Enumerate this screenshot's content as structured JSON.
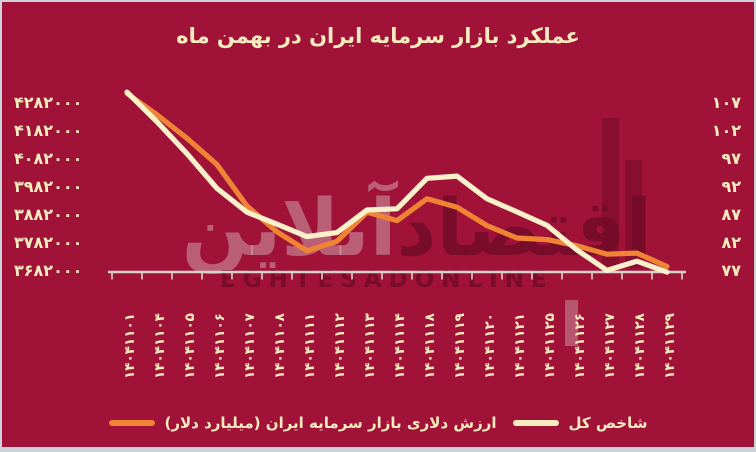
{
  "title": "عملکرد بازار سرمایه ایران در بهمن ماه",
  "watermark": {
    "brand_fa_dark": "اقتصاد",
    "brand_fa_light": "آنلاین",
    "brand_en": "EGHTESADONLINE"
  },
  "axes": {
    "left_tick_labels": [
      "۴۲۸۲۰۰۰",
      "۴۱۸۲۰۰۰",
      "۴۰۸۲۰۰۰",
      "۳۹۸۲۰۰۰",
      "۳۸۸۲۰۰۰",
      "۳۷۸۲۰۰۰",
      "۳۶۸۲۰۰۰"
    ],
    "right_tick_labels": [
      "۱۰۷",
      "۱۰۲",
      "۹۷",
      "۹۲",
      "۸۷",
      "۸۲",
      "۷۷"
    ],
    "x_tick_labels": [
      "۱۴۰۴۱۱۰۱",
      "۱۴۰۴۱۱۰۴",
      "۱۴۰۴۱۱۰۵",
      "۱۴۰۴۱۱۰۶",
      "۱۴۰۴۱۱۰۷",
      "۱۴۰۴۱۱۰۸",
      "۱۴۰۴۱۱۱۱",
      "۱۴۰۴۱۱۱۲",
      "۱۴۰۴۱۱۱۳",
      "۱۴۰۴۱۱۱۴",
      "۱۴۰۴۱۱۱۸",
      "۱۴۰۴۱۱۱۹",
      "۱۴۰۴۱۱۲۰",
      "۱۴۰۴۱۱۲۱",
      "۱۴۰۴۱۱۲۵",
      "۱۴۰۴۱۱۲۶",
      "۱۴۰۴۱۱۲۷",
      "۱۴۰۴۱۱۲۸",
      "۱۴۰۴۱۱۲۹"
    ]
  },
  "legend": {
    "items": [
      {
        "label": "ارزش دلاری بازار سرمایه ایران (میلیارد دلار)",
        "color": "#EF8434"
      },
      {
        "label": "شاخص کل",
        "color": "#F8ECBE"
      }
    ]
  },
  "colors": {
    "background": "#A11239",
    "text_cream": "#F8ECBE",
    "line_orange": "#EF8434",
    "line_cream": "#FAF1CB",
    "axis_line": "#D9D4CB",
    "frame": "#CDD2D9",
    "watermark_dark": "#700A28"
  },
  "chart_data": {
    "type": "line",
    "title": "عملکرد بازار سرمایه ایران در بهمن ماه",
    "categories": [
      "۱۴۰۴۱۱۰۱",
      "۱۴۰۴۱۱۰۴",
      "۱۴۰۴۱۱۰۵",
      "۱۴۰۴۱۱۰۶",
      "۱۴۰۴۱۱۰۷",
      "۱۴۰۴۱۱۰۸",
      "۱۴۰۴۱۱۱۱",
      "۱۴۰۴۱۱۱۲",
      "۱۴۰۴۱۱۱۳",
      "۱۴۰۴۱۱۱۴",
      "۱۴۰۴۱۱۱۸",
      "۱۴۰۴۱۱۱۹",
      "۱۴۰۴۱۱۲۰",
      "۱۴۰۴۱۱۲۱",
      "۱۴۰۴۱۱۲۵",
      "۱۴۰۴۱۱۲۶",
      "۱۴۰۴۱۱۲۷",
      "۱۴۰۴۱۱۲۸",
      "۱۴۰۴۱۱۲۹"
    ],
    "series": [
      {
        "name": "شاخص کل",
        "color": "#FAF1CB",
        "y_axis": "left",
        "values": [
          4321000,
          4215000,
          4101000,
          3977000,
          3892000,
          3849000,
          3805000,
          3819000,
          3900000,
          3904000,
          4013000,
          4021000,
          3940000,
          3893000,
          3845000,
          3757000,
          3684000,
          3717000,
          3678000
        ]
      },
      {
        "name": "ارزش دلاری بازار سرمایه ایران (میلیارد دلار)",
        "color": "#EF8434",
        "y_axis": "right",
        "values": [
          108.7,
          104.9,
          100.7,
          96.0,
          88.6,
          84.0,
          80.6,
          82.3,
          87.5,
          86.0,
          89.9,
          88.4,
          85.1,
          82.9,
          82.6,
          81.5,
          80.0,
          80.2,
          77.8
        ]
      }
    ],
    "left_axis": {
      "ticks": [
        4282000,
        4182000,
        4082000,
        3982000,
        3882000,
        3782000,
        3682000
      ]
    },
    "right_axis": {
      "ticks": [
        107,
        102,
        97,
        92,
        87,
        82,
        77
      ]
    },
    "grid": false,
    "legend_position": "bottom"
  }
}
